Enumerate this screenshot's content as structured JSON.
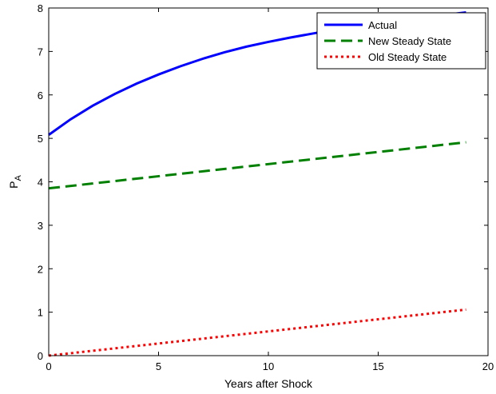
{
  "chart_data": {
    "type": "line",
    "title": "",
    "xlabel": "Years after Shock",
    "ylabel": "P",
    "ylabel_subscript": "A",
    "xlim": [
      0,
      20
    ],
    "ylim": [
      0,
      8
    ],
    "xticks": [
      0,
      5,
      10,
      15,
      20
    ],
    "yticks": [
      0,
      1,
      2,
      3,
      4,
      5,
      6,
      7,
      8
    ],
    "grid": false,
    "legend_position": "top-right",
    "series": [
      {
        "name": "Actual",
        "color": "#0000ff",
        "style": "solid",
        "x": [
          0,
          1,
          2,
          3,
          4,
          5,
          6,
          7,
          8,
          9,
          10,
          11,
          12,
          13,
          14,
          15,
          16,
          17,
          18,
          19
        ],
        "values": [
          5.08,
          5.44,
          5.75,
          6.02,
          6.26,
          6.47,
          6.66,
          6.83,
          6.98,
          7.11,
          7.22,
          7.32,
          7.41,
          7.5,
          7.58,
          7.65,
          7.72,
          7.78,
          7.84,
          7.9
        ]
      },
      {
        "name": "New Steady State",
        "color": "#008000",
        "style": "dashed",
        "x": [
          0,
          19
        ],
        "values": [
          3.85,
          4.91
        ]
      },
      {
        "name": "Old Steady State",
        "color": "#ff0000",
        "style": "dotted",
        "x": [
          0,
          19
        ],
        "values": [
          0.0,
          1.06
        ]
      }
    ]
  }
}
